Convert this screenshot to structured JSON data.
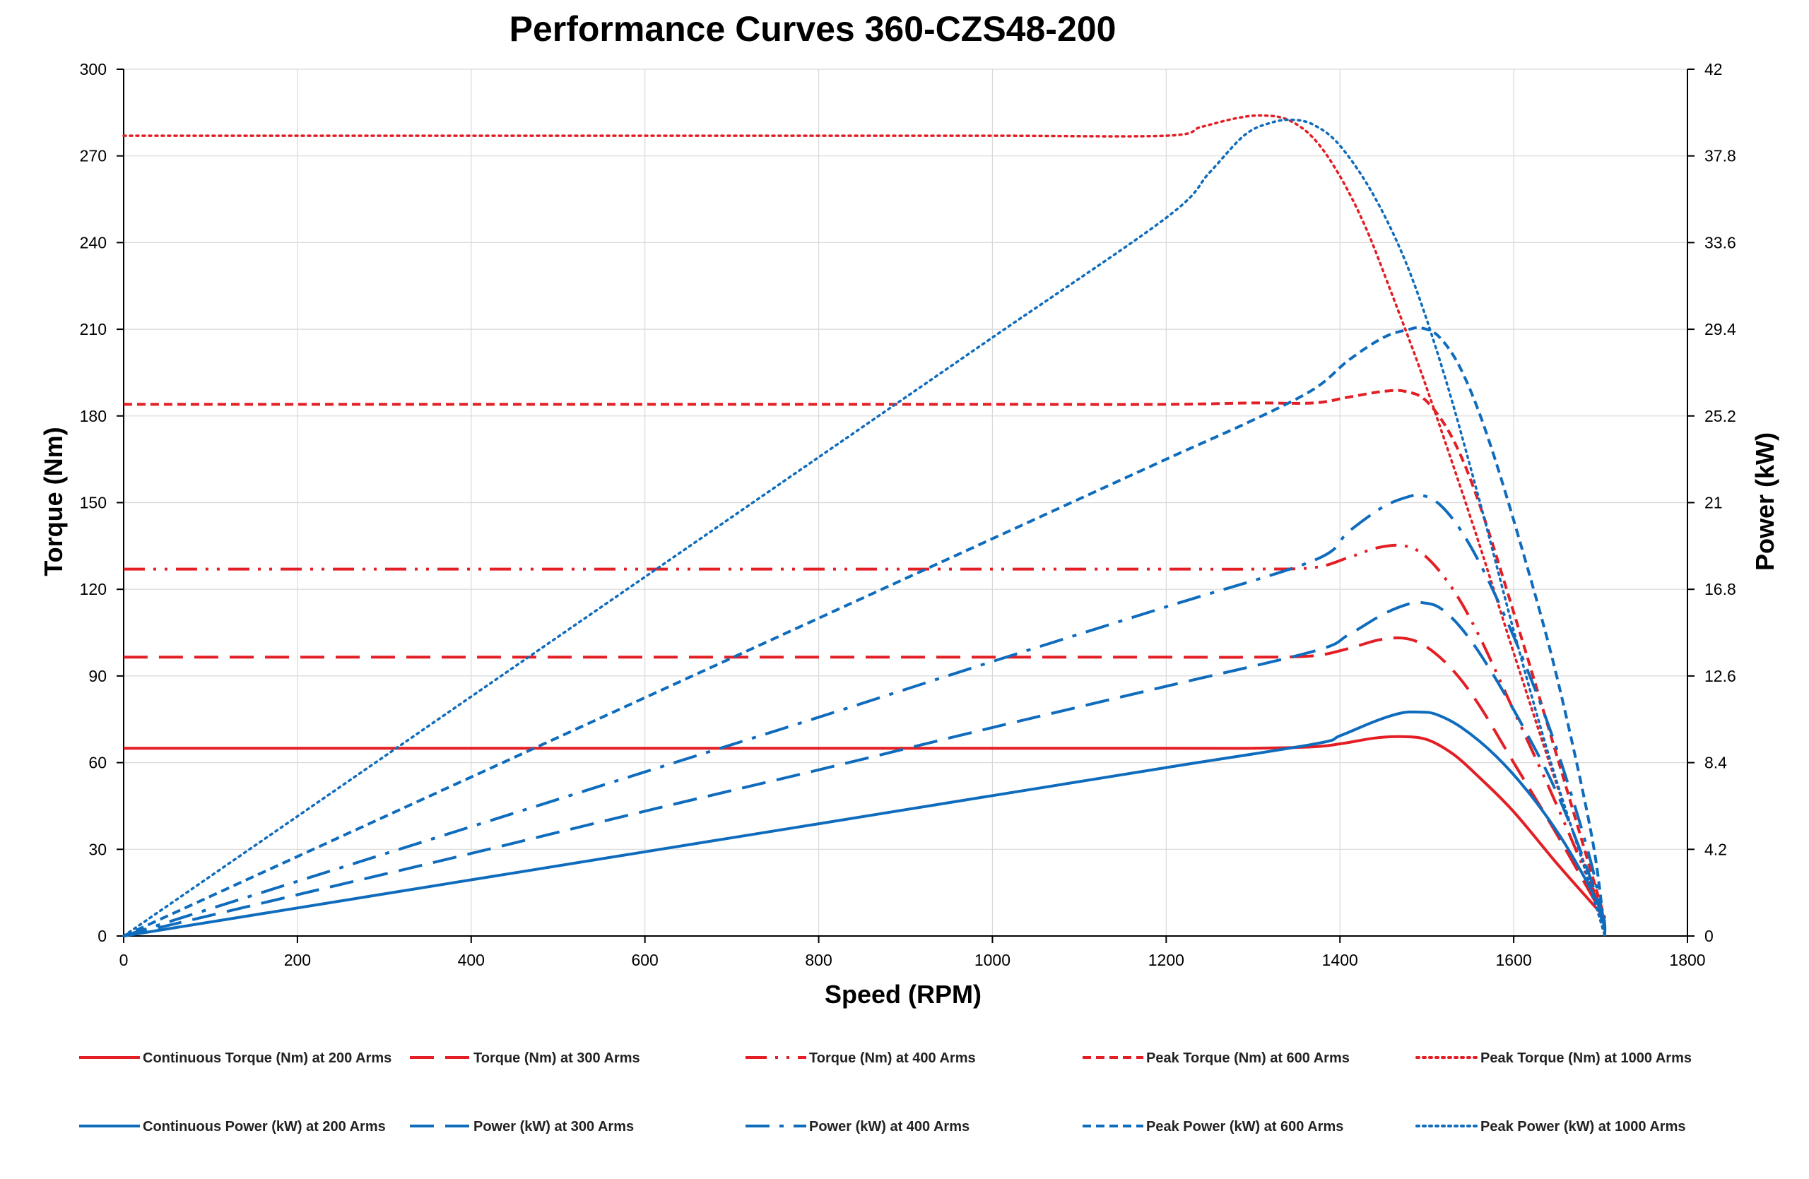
{
  "chart_data": {
    "type": "line",
    "title": "Performance Curves 360-CZS48-200",
    "xlabel": "Speed (RPM)",
    "ylabel": "Torque (Nm)",
    "y2label": "Power (kW)",
    "xlim": [
      0,
      1800
    ],
    "ylim": [
      0,
      300
    ],
    "y2lim": [
      0,
      42
    ],
    "x_ticks": [
      "0",
      "200",
      "400",
      "600",
      "800",
      "1000",
      "1200",
      "1400",
      "1600",
      "1800"
    ],
    "y_ticks": [
      "0",
      "30",
      "60",
      "90",
      "120",
      "150",
      "180",
      "210",
      "240",
      "270",
      "300"
    ],
    "y2_ticks": [
      "0",
      "4.2",
      "8.4",
      "12.6",
      "16.8",
      "21",
      "25.2",
      "29.4",
      "33.6",
      "37.8",
      "42"
    ],
    "grid": true,
    "legend_position": "bottom",
    "colors": {
      "torque": "#e31e24",
      "power": "#0f6cbd"
    },
    "series": [
      {
        "name": "Continuous Torque (Nm) at 200 Arms",
        "axis": "left",
        "color": "#e31e24",
        "dash": "solid",
        "x": [
          0,
          200,
          400,
          600,
          800,
          1000,
          1200,
          1300,
          1370,
          1400,
          1440,
          1470,
          1500,
          1530,
          1560,
          1600,
          1650,
          1700
        ],
        "values": [
          65,
          65,
          65,
          65,
          65,
          65,
          65,
          65,
          65.5,
          66.5,
          68.5,
          69,
          68,
          63,
          55,
          43,
          25,
          8
        ]
      },
      {
        "name": "Torque (Nm) at 300 Arms",
        "axis": "left",
        "color": "#e31e24",
        "dash": "longdash",
        "x": [
          0,
          200,
          400,
          600,
          800,
          1000,
          1200,
          1300,
          1370,
          1410,
          1445,
          1475,
          1500,
          1530,
          1560,
          1600,
          1650,
          1705
        ],
        "values": [
          96.5,
          96.5,
          96.5,
          96.5,
          96.5,
          96.5,
          96.5,
          96.5,
          97,
          99.5,
          102.5,
          103,
          100,
          92,
          80,
          60,
          35,
          6
        ]
      },
      {
        "name": "Torque (Nm) at 400 Arms",
        "axis": "left",
        "color": "#e31e24",
        "dash": "dashdotdot",
        "x": [
          0,
          200,
          400,
          600,
          800,
          1000,
          1200,
          1300,
          1370,
          1410,
          1445,
          1475,
          1500,
          1530,
          1560,
          1600,
          1650,
          1705
        ],
        "values": [
          127,
          127,
          127,
          127,
          127,
          127,
          127,
          127,
          127.5,
          131,
          134.5,
          135,
          131,
          120,
          104,
          78,
          45,
          6
        ]
      },
      {
        "name": "Peak Torque (Nm) at 600 Arms",
        "axis": "left",
        "color": "#e31e24",
        "dash": "shortdash",
        "x": [
          0,
          200,
          400,
          600,
          800,
          1000,
          1200,
          1300,
          1370,
          1410,
          1450,
          1475,
          1500,
          1530,
          1560,
          1600,
          1650,
          1705
        ],
        "values": [
          184,
          184,
          184,
          184,
          184,
          184,
          184,
          184.5,
          184.5,
          186.5,
          188.5,
          188.5,
          185,
          172,
          150,
          112,
          62,
          6
        ]
      },
      {
        "name": "Peak Torque (Nm) at 1000 Arms",
        "axis": "left",
        "color": "#e31e24",
        "dash": "dotted",
        "x": [
          0,
          200,
          400,
          600,
          800,
          1000,
          1200,
          1240,
          1280,
          1310,
          1340,
          1370,
          1400,
          1430,
          1460,
          1490,
          1520,
          1560,
          1600,
          1650,
          1705
        ],
        "values": [
          277,
          277,
          277,
          277,
          277,
          277,
          277,
          280,
          283,
          284,
          282.5,
          276,
          263,
          245,
          222,
          198,
          172,
          136,
          98,
          52,
          5
        ]
      },
      {
        "name": "Continuous Power (kW) at 200 Arms",
        "axis": "right",
        "color": "#0f6cbd",
        "dash": "solid",
        "x": [
          0,
          200,
          400,
          600,
          800,
          1000,
          1200,
          1370,
          1400,
          1440,
          1470,
          1490,
          1510,
          1540,
          1580,
          1620,
          1660,
          1700,
          1705
        ],
        "values": [
          0,
          1.36,
          2.72,
          4.08,
          5.44,
          6.8,
          8.16,
          9.3,
          9.7,
          10.4,
          10.8,
          10.85,
          10.75,
          10.1,
          8.7,
          6.8,
          4.4,
          1.3,
          0
        ]
      },
      {
        "name": "Power (kW) at 300 Arms",
        "axis": "right",
        "color": "#0f6cbd",
        "dash": "longdash",
        "x": [
          0,
          200,
          400,
          600,
          800,
          1000,
          1200,
          1370,
          1410,
          1450,
          1480,
          1495,
          1515,
          1540,
          1570,
          1610,
          1650,
          1690,
          1705
        ],
        "values": [
          0,
          2.0,
          4.0,
          6.05,
          8.05,
          10.1,
          12.1,
          13.8,
          14.6,
          15.6,
          16.1,
          16.15,
          15.9,
          14.9,
          13.1,
          10.2,
          6.9,
          2.6,
          0
        ]
      },
      {
        "name": "Power (kW) at 400 Arms",
        "axis": "right",
        "color": "#0f6cbd",
        "dash": "dashdot",
        "x": [
          0,
          200,
          400,
          600,
          800,
          1000,
          1200,
          1370,
          1410,
          1450,
          1480,
          1495,
          1515,
          1540,
          1570,
          1610,
          1650,
          1690,
          1705
        ],
        "values": [
          0,
          2.65,
          5.3,
          7.95,
          10.6,
          13.3,
          15.95,
          18.2,
          19.6,
          20.8,
          21.3,
          21.35,
          20.9,
          19.6,
          17.3,
          13.5,
          9.0,
          3.4,
          0
        ]
      },
      {
        "name": "Peak Power (kW) at 600 Arms",
        "axis": "right",
        "color": "#0f6cbd",
        "dash": "shortdash",
        "x": [
          0,
          200,
          400,
          600,
          800,
          1000,
          1200,
          1300,
          1370,
          1410,
          1450,
          1480,
          1495,
          1515,
          1540,
          1570,
          1610,
          1650,
          1690,
          1705
        ],
        "values": [
          0,
          3.85,
          7.7,
          11.55,
          15.4,
          19.25,
          23.1,
          25.0,
          26.5,
          27.9,
          29.0,
          29.4,
          29.45,
          29.0,
          27.4,
          24.2,
          18.7,
          12.5,
          4.8,
          0
        ]
      },
      {
        "name": "Peak Power (kW) at 1000 Arms",
        "axis": "right",
        "color": "#0f6cbd",
        "dash": "dotted",
        "x": [
          0,
          200,
          400,
          600,
          800,
          1000,
          1200,
          1250,
          1290,
          1320,
          1345,
          1370,
          1400,
          1440,
          1480,
          1520,
          1560,
          1600,
          1640,
          1680,
          1705
        ],
        "values": [
          0,
          5.8,
          11.6,
          17.4,
          23.2,
          29.0,
          34.8,
          37.0,
          38.8,
          39.4,
          39.55,
          39.3,
          38.3,
          35.8,
          32.2,
          27.2,
          21.2,
          14.8,
          8.8,
          3.5,
          0
        ]
      }
    ]
  }
}
